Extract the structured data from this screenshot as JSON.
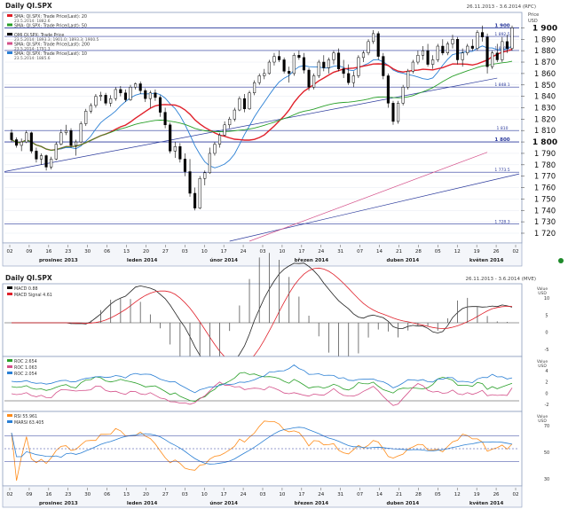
{
  "header": {
    "title": "Daily QI.SPX",
    "date_range": "26.11.2013 - 3.6.2014 (RFC)",
    "price_unit_top": "Price",
    "price_unit_bottom": "USD"
  },
  "legend_main": [
    {
      "label": "SMA: QI.SPX: Trade Price(Last): 20",
      "value": "23.5.2014: 1882.6",
      "color": "#e0202a"
    },
    {
      "label": "SMA: QI.SPX: Trade Price(Last): 50",
      "value": "",
      "color": "#2aa02a"
    },
    {
      "label": "QMI QI.SPX: Trade Price",
      "value": "23.5.2014: 1893.3; 1901.0; 1893.3; 1900.5",
      "color": "#000000"
    },
    {
      "label": "SMA: QI.SPX: Trade Price(Last): 200",
      "value": "23.5.2014: 1791.3",
      "color": "#d4508a"
    },
    {
      "label": "SMA: QI.SPX: Trade Price(Last): 10",
      "value": "23.5.2014: 1885.6",
      "color": "#2a7fd4"
    }
  ],
  "hlines": [
    {
      "label": "1 900",
      "value": 1900,
      "bold": true
    },
    {
      "label": "1 892.5",
      "value": 1892.5
    },
    {
      "label": "1 880.2",
      "value": 1880.2
    },
    {
      "label": "1 848.1",
      "value": 1848.1
    },
    {
      "label": "1 810",
      "value": 1810
    },
    {
      "label": "1 800",
      "value": 1800,
      "bold": true
    },
    {
      "label": "1 773.5",
      "value": 1773.5
    },
    {
      "label": "1 728.3",
      "value": 1728.3
    }
  ],
  "x_axis": {
    "ticks": [
      "02",
      "09",
      "16",
      "23",
      "30",
      "06",
      "13",
      "20",
      "27",
      "03",
      "10",
      "17",
      "24",
      "03",
      "10",
      "17",
      "24",
      "31",
      "07",
      "14",
      "21",
      "28",
      "05",
      "12",
      "19",
      "26",
      "02"
    ],
    "months": [
      "prosinec 2013",
      "leden 2014",
      "únor 2014",
      "březen 2014",
      "duben 2014",
      "květen 2014"
    ]
  },
  "panel_macd": {
    "title": "Daily QI.SPX",
    "date_range": "26.11.2013 - 3.6.2014 (MVE)",
    "legend": [
      {
        "label": "MACD 0.88",
        "color": "#000000"
      },
      {
        "label": "MACD Signal 4.61",
        "color": "#e0202a"
      }
    ],
    "unit": "Value\nUSD",
    "ticks": [
      "10",
      "5",
      "0",
      "-5"
    ]
  },
  "panel_roc": {
    "legend": [
      {
        "label": "ROC 2.654",
        "color": "#2aa02a"
      },
      {
        "label": "ROC 1.063",
        "color": "#d4508a"
      },
      {
        "label": "ROC 2.054",
        "color": "#2a7fd4"
      }
    ],
    "unit": "Value\nUSD",
    "ticks": [
      "4",
      "2",
      "0",
      "-2"
    ]
  },
  "panel_rsi": {
    "legend": [
      {
        "label": "RSI 55.961",
        "color": "#ff8c1a"
      },
      {
        "label": "MARSI 63.405",
        "color": "#2a7fd4"
      }
    ],
    "unit": "Value\nUSD",
    "ticks": [
      "70",
      "50",
      "30"
    ]
  },
  "chart_data": {
    "type": "candlestick",
    "ylim": [
      1713,
      1912
    ],
    "y_ticks": [
      1900,
      1890,
      1880,
      1870,
      1860,
      1850,
      1840,
      1830,
      1820,
      1810,
      1800,
      1790,
      1780,
      1770,
      1760,
      1750,
      1740,
      1730,
      1720
    ],
    "candles": [
      [
        1808,
        1811,
        1800,
        1802
      ],
      [
        1802,
        1804,
        1795,
        1797
      ],
      [
        1797,
        1803,
        1792,
        1800
      ],
      [
        1800,
        1810,
        1799,
        1808
      ],
      [
        1808,
        1809,
        1790,
        1792
      ],
      [
        1792,
        1795,
        1782,
        1785
      ],
      [
        1785,
        1790,
        1780,
        1788
      ],
      [
        1788,
        1789,
        1775,
        1778
      ],
      [
        1778,
        1787,
        1776,
        1785
      ],
      [
        1785,
        1800,
        1784,
        1798
      ],
      [
        1798,
        1811,
        1797,
        1808
      ],
      [
        1808,
        1815,
        1806,
        1810
      ],
      [
        1810,
        1812,
        1795,
        1797
      ],
      [
        1797,
        1802,
        1788,
        1800
      ],
      [
        1800,
        1818,
        1799,
        1816
      ],
      [
        1816,
        1829,
        1814,
        1827
      ],
      [
        1827,
        1834,
        1825,
        1832
      ],
      [
        1832,
        1842,
        1830,
        1840
      ],
      [
        1840,
        1844,
        1836,
        1841
      ],
      [
        1841,
        1843,
        1832,
        1834
      ],
      [
        1834,
        1841,
        1831,
        1838
      ],
      [
        1838,
        1848,
        1836,
        1846
      ],
      [
        1846,
        1849,
        1840,
        1843
      ],
      [
        1843,
        1846,
        1835,
        1837
      ],
      [
        1837,
        1850,
        1836,
        1848
      ],
      [
        1848,
        1852,
        1846,
        1851
      ],
      [
        1851,
        1853,
        1842,
        1845
      ],
      [
        1845,
        1847,
        1835,
        1838
      ],
      [
        1838,
        1845,
        1830,
        1843
      ],
      [
        1843,
        1846,
        1836,
        1839
      ],
      [
        1839,
        1841,
        1822,
        1826
      ],
      [
        1826,
        1830,
        1812,
        1815
      ],
      [
        1815,
        1817,
        1790,
        1792
      ],
      [
        1792,
        1800,
        1786,
        1796
      ],
      [
        1796,
        1799,
        1782,
        1785
      ],
      [
        1785,
        1790,
        1770,
        1774
      ],
      [
        1774,
        1785,
        1752,
        1755
      ],
      [
        1755,
        1760,
        1740,
        1742
      ],
      [
        1742,
        1770,
        1741,
        1768
      ],
      [
        1768,
        1775,
        1762,
        1773
      ],
      [
        1773,
        1795,
        1772,
        1790
      ],
      [
        1790,
        1800,
        1788,
        1798
      ],
      [
        1798,
        1808,
        1795,
        1806
      ],
      [
        1806,
        1818,
        1805,
        1815
      ],
      [
        1815,
        1822,
        1812,
        1820
      ],
      [
        1820,
        1830,
        1818,
        1828
      ],
      [
        1828,
        1840,
        1827,
        1838
      ],
      [
        1838,
        1842,
        1826,
        1829
      ],
      [
        1829,
        1845,
        1828,
        1843
      ],
      [
        1843,
        1854,
        1841,
        1852
      ],
      [
        1852,
        1860,
        1850,
        1858
      ],
      [
        1858,
        1864,
        1855,
        1860
      ],
      [
        1860,
        1872,
        1859,
        1870
      ],
      [
        1870,
        1878,
        1867,
        1875
      ],
      [
        1875,
        1880,
        1870,
        1872
      ],
      [
        1872,
        1874,
        1860,
        1862
      ],
      [
        1862,
        1866,
        1852,
        1860
      ],
      [
        1860,
        1878,
        1858,
        1876
      ],
      [
        1876,
        1880,
        1872,
        1874
      ],
      [
        1874,
        1878,
        1860,
        1863
      ],
      [
        1863,
        1865,
        1845,
        1848
      ],
      [
        1848,
        1860,
        1846,
        1858
      ],
      [
        1858,
        1872,
        1856,
        1870
      ],
      [
        1870,
        1876,
        1862,
        1865
      ],
      [
        1865,
        1874,
        1860,
        1872
      ],
      [
        1872,
        1880,
        1868,
        1878
      ],
      [
        1878,
        1882,
        1862,
        1864
      ],
      [
        1864,
        1872,
        1856,
        1860
      ],
      [
        1860,
        1868,
        1850,
        1852
      ],
      [
        1852,
        1862,
        1848,
        1858
      ],
      [
        1858,
        1876,
        1856,
        1874
      ],
      [
        1874,
        1880,
        1870,
        1878
      ],
      [
        1878,
        1890,
        1876,
        1888
      ],
      [
        1888,
        1898,
        1886,
        1895
      ],
      [
        1895,
        1897,
        1872,
        1875
      ],
      [
        1875,
        1878,
        1855,
        1858
      ],
      [
        1858,
        1860,
        1830,
        1834
      ],
      [
        1834,
        1836,
        1815,
        1818
      ],
      [
        1818,
        1836,
        1816,
        1834
      ],
      [
        1834,
        1850,
        1832,
        1848
      ],
      [
        1848,
        1864,
        1846,
        1862
      ],
      [
        1862,
        1872,
        1860,
        1870
      ],
      [
        1870,
        1880,
        1868,
        1876
      ],
      [
        1876,
        1884,
        1872,
        1880
      ],
      [
        1880,
        1886,
        1866,
        1868
      ],
      [
        1868,
        1876,
        1864,
        1872
      ],
      [
        1872,
        1886,
        1870,
        1884
      ],
      [
        1884,
        1890,
        1876,
        1878
      ],
      [
        1878,
        1888,
        1876,
        1886
      ],
      [
        1886,
        1894,
        1882,
        1890
      ],
      [
        1890,
        1892,
        1868,
        1872
      ],
      [
        1872,
        1882,
        1866,
        1878
      ],
      [
        1878,
        1886,
        1876,
        1884
      ],
      [
        1884,
        1890,
        1880,
        1882
      ],
      [
        1882,
        1898,
        1880,
        1896
      ],
      [
        1896,
        1902,
        1888,
        1892
      ],
      [
        1892,
        1895,
        1860,
        1866
      ],
      [
        1866,
        1880,
        1864,
        1878
      ],
      [
        1878,
        1886,
        1870,
        1872
      ],
      [
        1872,
        1892,
        1870,
        1888
      ],
      [
        1888,
        1894,
        1878,
        1882
      ],
      [
        1882,
        1902,
        1880,
        1900
      ]
    ]
  }
}
